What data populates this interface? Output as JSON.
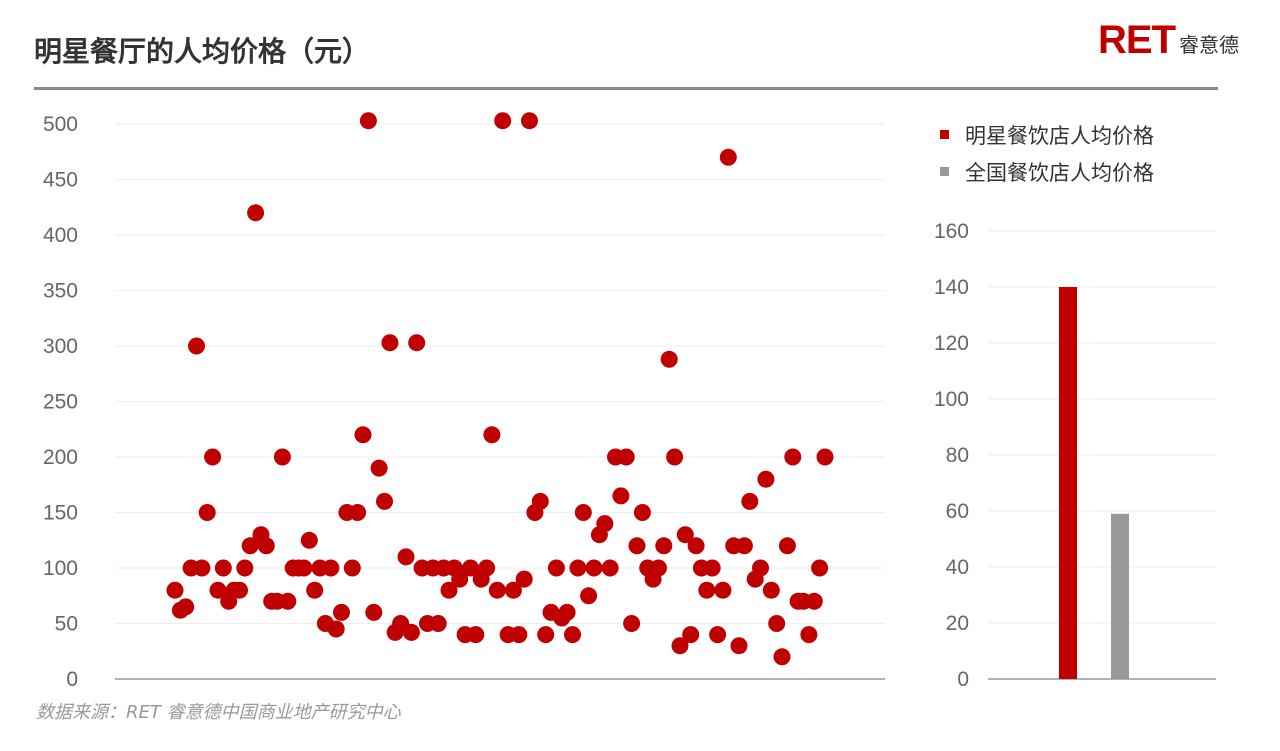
{
  "title": "明星餐厅的人均价格（元）",
  "logo": {
    "mark": "RET",
    "text": "睿意德"
  },
  "source": "数据来源：RET 睿意德中国商业地产研究中心",
  "colors": {
    "red": "#c00000",
    "gray": "#999999",
    "grid": "#eeeeee",
    "axis": "#999999"
  },
  "chart_data": [
    {
      "type": "scatter",
      "title": "",
      "xlabel": "",
      "ylabel": "",
      "ylim": [
        0,
        500
      ],
      "yticks": [
        "0",
        "50",
        "100",
        "150",
        "200",
        "250",
        "300",
        "350",
        "400",
        "450",
        "500"
      ],
      "grid": true,
      "series": [
        {
          "name": "明星餐饮店人均价格",
          "color": "#c00000",
          "values": [
            80,
            62,
            65,
            100,
            300,
            100,
            150,
            200,
            80,
            100,
            70,
            80,
            80,
            100,
            120,
            420,
            130,
            120,
            70,
            70,
            200,
            70,
            100,
            100,
            100,
            125,
            80,
            100,
            50,
            100,
            45,
            60,
            150,
            100,
            150,
            220,
            503,
            60,
            190,
            160,
            303,
            42,
            50,
            110,
            42,
            303,
            100,
            50,
            100,
            50,
            100,
            80,
            100,
            90,
            40,
            100,
            40,
            90,
            100,
            220,
            80,
            503,
            40,
            80,
            40,
            90,
            503,
            150,
            160,
            40,
            60,
            100,
            55,
            60,
            40,
            100,
            150,
            75,
            100,
            130,
            140,
            100,
            200,
            165,
            200,
            50,
            120,
            150,
            100,
            90,
            100,
            120,
            288,
            200,
            30,
            130,
            40,
            120,
            100,
            80,
            100,
            40,
            80,
            470,
            120,
            30,
            120,
            160,
            90,
            100,
            180,
            80,
            50,
            20,
            120,
            200,
            70,
            70,
            40,
            70,
            100,
            200
          ]
        }
      ]
    },
    {
      "type": "bar",
      "title": "",
      "xlabel": "",
      "ylabel": "",
      "ylim": [
        0,
        160
      ],
      "yticks": [
        "0",
        "20",
        "40",
        "60",
        "80",
        "100",
        "120",
        "140",
        "160"
      ],
      "grid": true,
      "legend": "top",
      "categories": [
        "明星餐饮店人均价格",
        "全国餐饮店人均价格"
      ],
      "values": [
        140,
        59
      ],
      "colors": [
        "#c00000",
        "#999999"
      ]
    }
  ]
}
